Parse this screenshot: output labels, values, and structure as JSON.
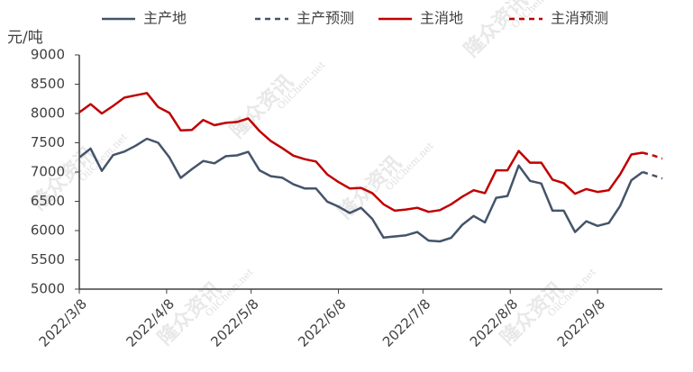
{
  "chart_data": {
    "type": "line",
    "y_label": "元/吨",
    "watermark": [
      "隆众资讯",
      "OilChem.net"
    ],
    "x": [
      "2022/3/8",
      "2022/3/12",
      "2022/3/16",
      "2022/3/20",
      "2022/3/24",
      "2022/3/28",
      "2022/4/1",
      "2022/4/5",
      "2022/4/9",
      "2022/4/13",
      "2022/4/17",
      "2022/4/21",
      "2022/4/25",
      "2022/4/29",
      "2022/5/3",
      "2022/5/7",
      "2022/5/11",
      "2022/5/15",
      "2022/5/19",
      "2022/5/23",
      "2022/5/27",
      "2022/5/31",
      "2022/6/4",
      "2022/6/8",
      "2022/6/12",
      "2022/6/16",
      "2022/6/20",
      "2022/6/24",
      "2022/6/28",
      "2022/7/2",
      "2022/7/6",
      "2022/7/10",
      "2022/7/14",
      "2022/7/18",
      "2022/7/22",
      "2022/7/26",
      "2022/7/30",
      "2022/8/3",
      "2022/8/7",
      "2022/8/11",
      "2022/8/15",
      "2022/8/19",
      "2022/8/23",
      "2022/8/27",
      "2022/8/31",
      "2022/9/4",
      "2022/9/8",
      "2022/9/12",
      "2022/9/16",
      "2022/9/20",
      "2022/9/24",
      "2022/9/28",
      "2022/10/1"
    ],
    "series": [
      {
        "name": "主产地",
        "color": "#44546a",
        "dash": false,
        "values": [
          7250,
          7400,
          7020,
          7290,
          7350,
          7450,
          7570,
          7500,
          7250,
          6900,
          7050,
          7190,
          7150,
          7270,
          7285,
          7345,
          7030,
          6930,
          6905,
          6790,
          6720,
          6720,
          6495,
          6410,
          6300,
          6390,
          6200,
          5880,
          5900,
          5920,
          5975,
          5830,
          5815,
          5875,
          6100,
          6250,
          6140,
          6560,
          6590,
          7110,
          6850,
          6805,
          6340,
          6340,
          5975,
          6160,
          6080,
          6130,
          6420,
          6860,
          7000,
          null,
          null
        ]
      },
      {
        "name": "主产预测",
        "color": "#44546a",
        "dash": true,
        "values": [
          null,
          null,
          null,
          null,
          null,
          null,
          null,
          null,
          null,
          null,
          null,
          null,
          null,
          null,
          null,
          null,
          null,
          null,
          null,
          null,
          null,
          null,
          null,
          null,
          null,
          null,
          null,
          null,
          null,
          null,
          null,
          null,
          null,
          null,
          null,
          null,
          null,
          null,
          null,
          null,
          null,
          null,
          null,
          null,
          null,
          null,
          null,
          null,
          null,
          null,
          7000,
          6940,
          6890
        ]
      },
      {
        "name": "主消地",
        "color": "#c00000",
        "dash": false,
        "values": [
          8020,
          8160,
          8000,
          8130,
          8270,
          8310,
          8350,
          8110,
          8010,
          7710,
          7720,
          7890,
          7800,
          7840,
          7855,
          7915,
          7700,
          7530,
          7410,
          7280,
          7220,
          7180,
          6960,
          6830,
          6720,
          6730,
          6640,
          6450,
          6340,
          6360,
          6390,
          6320,
          6350,
          6450,
          6580,
          6690,
          6640,
          7030,
          7030,
          7360,
          7160,
          7160,
          6870,
          6810,
          6630,
          6710,
          6660,
          6690,
          6960,
          7300,
          7330,
          null,
          null
        ]
      },
      {
        "name": "主消预测",
        "color": "#c00000",
        "dash": true,
        "values": [
          null,
          null,
          null,
          null,
          null,
          null,
          null,
          null,
          null,
          null,
          null,
          null,
          null,
          null,
          null,
          null,
          null,
          null,
          null,
          null,
          null,
          null,
          null,
          null,
          null,
          null,
          null,
          null,
          null,
          null,
          null,
          null,
          null,
          null,
          null,
          null,
          null,
          null,
          null,
          null,
          null,
          null,
          null,
          null,
          null,
          null,
          null,
          null,
          null,
          null,
          7330,
          7280,
          7230
        ]
      }
    ],
    "xlim": [
      "2022/3/8",
      "2022/10/1"
    ],
    "xticks": [
      "2022/3/8",
      "2022/4/8",
      "2022/5/8",
      "2022/6/8",
      "2022/7/8",
      "2022/8/8",
      "2022/9/8"
    ],
    "ylim": [
      5000,
      9000
    ],
    "yticks": [
      5000,
      5500,
      6000,
      6500,
      7000,
      7500,
      8000,
      8500,
      9000
    ],
    "grid": false,
    "legend": "top"
  }
}
